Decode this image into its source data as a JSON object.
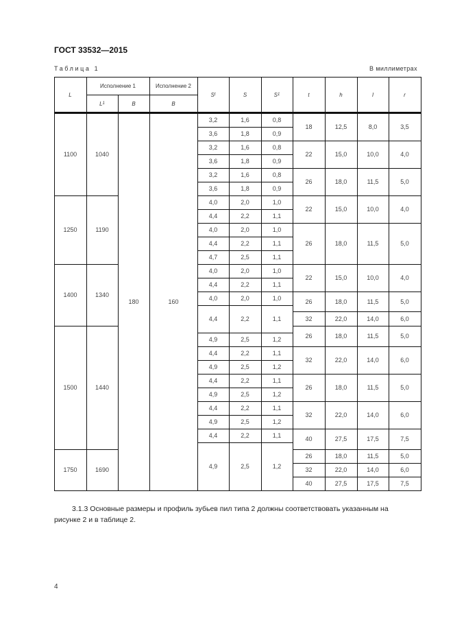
{
  "doc_title": "ГОСТ 33532—2015",
  "table_caption": "Таблица 1",
  "units_note": "В миллиметрах",
  "table": {
    "header": {
      "L": "L",
      "isp1": "Исполнение 1",
      "isp2": "Исполнение 2",
      "L1": "L",
      "L1_sub": "1",
      "B1": "B",
      "B2": "B",
      "St": "S",
      "St_sub": "t",
      "S": "S",
      "S1": "S",
      "S1_sub": "1",
      "t": "t",
      "h": "h",
      "l": "l",
      "r": "r"
    },
    "B1_value": "180",
    "B2_value": "160",
    "groups": [
      {
        "L": "1100",
        "L1": "1040"
      },
      {
        "L": "1250",
        "L1": "1190"
      },
      {
        "L": "1400",
        "L1": "1340"
      },
      {
        "L": "1500",
        "L1": "1440"
      },
      {
        "L": "1750",
        "L1": "1690"
      }
    ],
    "s_rows": [
      [
        "3,2",
        "1,6",
        "0,8"
      ],
      [
        "3,6",
        "1,8",
        "0,9"
      ],
      [
        "3,2",
        "1,6",
        "0,8"
      ],
      [
        "3,6",
        "1,8",
        "0,9"
      ],
      [
        "3,2",
        "1,6",
        "0,8"
      ],
      [
        "3,6",
        "1,8",
        "0,9"
      ],
      [
        "4,0",
        "2,0",
        "1,0"
      ],
      [
        "4,4",
        "2,2",
        "1,1"
      ],
      [
        "4,0",
        "2,0",
        "1,0"
      ],
      [
        "4,4",
        "2,2",
        "1,1"
      ],
      [
        "4,7",
        "2,5",
        "1,1"
      ],
      [
        "4,0",
        "2,0",
        "1,0"
      ],
      [
        "4,4",
        "2,2",
        "1,1"
      ],
      [
        "4,0",
        "2,0",
        "1,0"
      ],
      [
        "4,4",
        "2,2",
        "1,1"
      ],
      [
        "4,9",
        "2,5",
        "1,2"
      ],
      [
        "4,4",
        "2,2",
        "1,1"
      ],
      [
        "4,9",
        "2,5",
        "1,2"
      ],
      [
        "4,4",
        "2,2",
        "1,1"
      ],
      [
        "4,9",
        "2,5",
        "1,2"
      ],
      [
        "4,4",
        "2,2",
        "1,1"
      ],
      [
        "4,9",
        "2,5",
        "1,2"
      ],
      [
        "4,4",
        "2,2",
        "1,1"
      ],
      [
        "4,9",
        "2,5",
        "1,2"
      ]
    ],
    "t_rows": [
      [
        "18",
        "12,5",
        "8,0",
        "3,5"
      ],
      [
        "22",
        "15,0",
        "10,0",
        "4,0"
      ],
      [
        "26",
        "18,0",
        "11,5",
        "5,0"
      ],
      [
        "22",
        "15,0",
        "10,0",
        "4,0"
      ],
      [
        "26",
        "18,0",
        "11,5",
        "5,0"
      ],
      [
        "22",
        "15,0",
        "10,0",
        "4,0"
      ],
      [
        "26",
        "18,0",
        "11,5",
        "5,0"
      ],
      [
        "32",
        "22,0",
        "14,0",
        "6,0"
      ],
      [
        "26",
        "18,0",
        "11,5",
        "5,0"
      ],
      [
        "32",
        "22,0",
        "14,0",
        "6,0"
      ],
      [
        "26",
        "18,0",
        "11,5",
        "5,0"
      ],
      [
        "32",
        "22,0",
        "14,0",
        "6,0"
      ],
      [
        "40",
        "27,5",
        "17,5",
        "7,5"
      ],
      [
        "26",
        "18,0",
        "11,5",
        "5,0"
      ],
      [
        "32",
        "22,0",
        "14,0",
        "6,0"
      ],
      [
        "40",
        "27,5",
        "17,5",
        "7,5"
      ]
    ]
  },
  "paragraph": {
    "line1": "3.1.3 Основные размеры и профиль зубьев пил типа 2 должны соответствовать указанным на",
    "line2": "рисунке 2 и в таблице 2."
  },
  "page_number": "4"
}
